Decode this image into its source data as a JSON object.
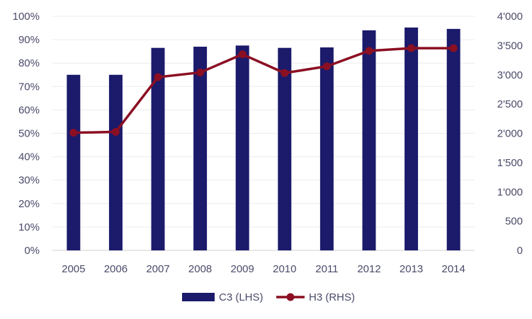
{
  "chart_data": {
    "type": "bar+line",
    "categories": [
      "2005",
      "2006",
      "2007",
      "2008",
      "2009",
      "2010",
      "2011",
      "2012",
      "2013",
      "2014"
    ],
    "series": [
      {
        "name": "C3 (LHS)",
        "type": "bar",
        "axis": "left",
        "color": "#1b1a6b",
        "values": [
          75,
          75,
          86.5,
          87,
          87.5,
          86.5,
          86.7,
          94,
          95.2,
          94.6
        ]
      },
      {
        "name": "H3 (RHS)",
        "type": "line",
        "axis": "right",
        "color": "#8b0f22",
        "values": [
          2010,
          2025,
          2960,
          3040,
          3350,
          3030,
          3145,
          3410,
          3455,
          3455
        ]
      }
    ],
    "y_left": {
      "min": 0,
      "max": 100,
      "ticks": [
        0,
        10,
        20,
        30,
        40,
        50,
        60,
        70,
        80,
        90,
        100
      ],
      "tick_labels": [
        "0%",
        "10%",
        "20%",
        "30%",
        "40%",
        "50%",
        "60%",
        "70%",
        "80%",
        "90%",
        "100%"
      ]
    },
    "y_right": {
      "min": 0,
      "max": 4000,
      "ticks": [
        0,
        500,
        1000,
        1500,
        2000,
        2500,
        3000,
        3500,
        4000
      ],
      "tick_labels": [
        "0",
        "500",
        "1'000",
        "1'500",
        "2'000",
        "2'500",
        "3'000",
        "3'500",
        "4'000"
      ]
    },
    "grid": true,
    "legend_position": "bottom"
  }
}
